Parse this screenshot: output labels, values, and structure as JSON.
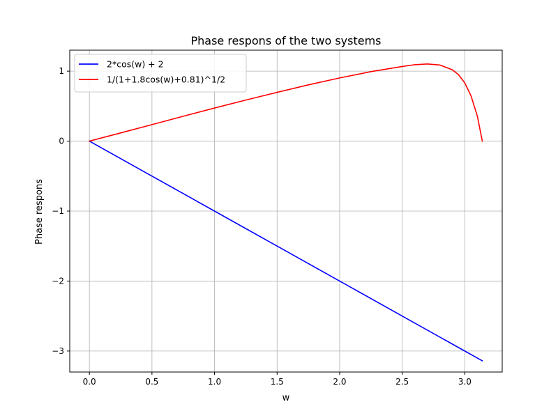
{
  "chart_data": {
    "type": "line",
    "title": "Phase respons of the two systems",
    "xlabel": "w",
    "ylabel": "Phase respons",
    "xlim": [
      -0.157,
      3.299
    ],
    "ylim": [
      -3.3,
      1.3
    ],
    "grid": true,
    "legend_position": "top-left",
    "x_ticks": [
      0.0,
      0.5,
      1.0,
      1.5,
      2.0,
      2.5,
      3.0
    ],
    "x_tick_labels": [
      "0.0",
      "0.5",
      "1.0",
      "1.5",
      "2.0",
      "2.5",
      "3.0"
    ],
    "y_ticks": [
      -3,
      -2,
      -1,
      0,
      1
    ],
    "y_tick_labels": [
      "−3",
      "−2",
      "−1",
      "0",
      "1"
    ],
    "series": [
      {
        "name": "2*cos(w) + 2",
        "color": "#0000ff",
        "x": [
          0.0,
          0.5,
          1.0,
          1.5,
          2.0,
          2.5,
          3.0,
          3.14
        ],
        "y": [
          0.0,
          -0.5,
          -1.0,
          -1.5,
          -2.0,
          -2.5,
          -3.0,
          -3.14
        ]
      },
      {
        "name": "1/(1+1.8cos(w)+0.81)^1/2",
        "color": "#ff0000",
        "x": [
          0.0,
          0.25,
          0.5,
          0.75,
          1.0,
          1.25,
          1.5,
          1.75,
          2.0,
          2.25,
          2.5,
          2.6,
          2.7,
          2.8,
          2.9,
          2.95,
          3.0,
          3.05,
          3.1,
          3.14
        ],
        "y": [
          0.0,
          0.117,
          0.236,
          0.355,
          0.473,
          0.587,
          0.697,
          0.804,
          0.903,
          0.993,
          1.067,
          1.092,
          1.103,
          1.088,
          1.02,
          0.95,
          0.832,
          0.645,
          0.361,
          0.0
        ]
      }
    ]
  }
}
